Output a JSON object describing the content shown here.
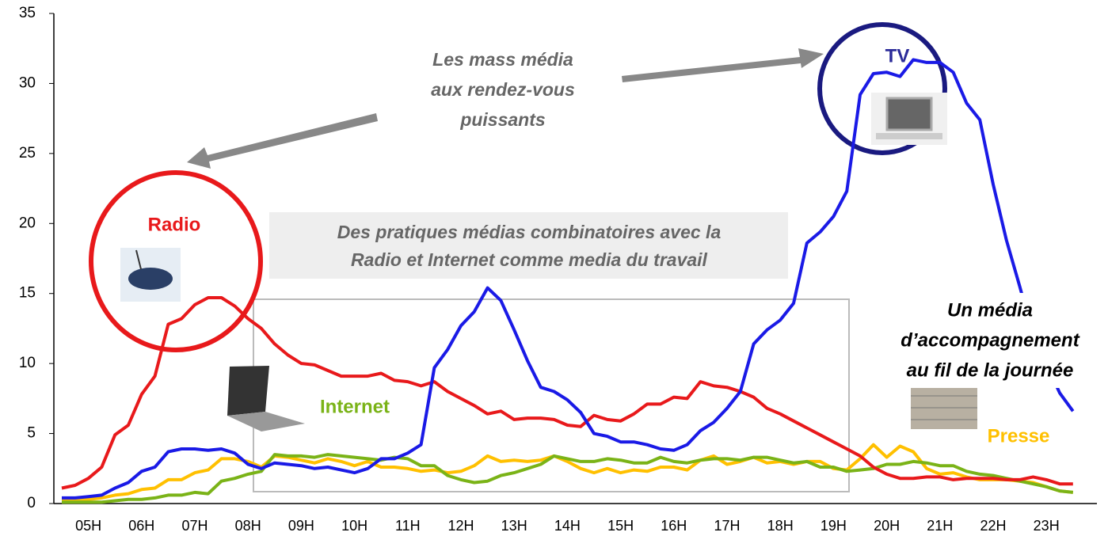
{
  "chart_data": {
    "type": "line",
    "categories": [
      null,
      null,
      "05H",
      null,
      null,
      null,
      "06H",
      null,
      null,
      null,
      "07H",
      null,
      null,
      null,
      "08H",
      null,
      null,
      null,
      "09H",
      null,
      null,
      null,
      "10H",
      null,
      null,
      null,
      "11H",
      null,
      null,
      null,
      "12H",
      null,
      null,
      null,
      "13H",
      null,
      null,
      null,
      "14H",
      null,
      null,
      null,
      "15H",
      null,
      null,
      null,
      "16H",
      null,
      null,
      null,
      "17H",
      null,
      null,
      null,
      "18H",
      null,
      null,
      null,
      "19H",
      null,
      null,
      null,
      "20H",
      null,
      null,
      null,
      "21H",
      null,
      null,
      null,
      "22H",
      null,
      null,
      null,
      "23H",
      null,
      null
    ],
    "series": [
      {
        "name": "Radio",
        "color": "#e8191b",
        "values": [
          1.1,
          1.3,
          1.8,
          2.6,
          4.9,
          5.6,
          7.8,
          9.1,
          12.8,
          13.2,
          14.2,
          14.7,
          14.7,
          14.1,
          13.2,
          12.5,
          11.4,
          10.6,
          10.0,
          9.9,
          9.5,
          9.1,
          9.1,
          9.1,
          9.3,
          8.8,
          8.7,
          8.4,
          8.7,
          8.0,
          7.5,
          7.0,
          6.4,
          6.6,
          6.0,
          6.1,
          6.1,
          6.0,
          5.6,
          5.5,
          6.3,
          6.0,
          5.9,
          6.4,
          7.1,
          7.1,
          7.6,
          7.5,
          8.7,
          8.4,
          8.3,
          8.0,
          7.6,
          6.8,
          6.4,
          5.9,
          5.4,
          4.9,
          4.4,
          3.9,
          3.4,
          2.6,
          2.1,
          1.8,
          1.8,
          1.9,
          1.9,
          1.7,
          1.8,
          1.8,
          1.8,
          1.7,
          1.7,
          1.9,
          1.7,
          1.4,
          1.4
        ]
      },
      {
        "name": "TV",
        "color": "#1a1ae6",
        "values": [
          0.4,
          0.4,
          0.5,
          0.6,
          1.1,
          1.5,
          2.3,
          2.6,
          3.7,
          3.9,
          3.9,
          3.8,
          3.9,
          3.6,
          2.8,
          2.5,
          2.9,
          2.8,
          2.7,
          2.5,
          2.6,
          2.4,
          2.2,
          2.5,
          3.2,
          3.2,
          3.6,
          4.2,
          9.7,
          11.0,
          12.7,
          13.7,
          15.4,
          14.5,
          12.4,
          10.2,
          8.3,
          8.0,
          7.4,
          6.5,
          5.0,
          4.8,
          4.4,
          4.4,
          4.2,
          3.9,
          3.8,
          4.2,
          5.2,
          5.8,
          6.8,
          8.0,
          11.4,
          12.4,
          13.1,
          14.3,
          18.6,
          19.4,
          20.5,
          22.3,
          29.2,
          30.7,
          30.8,
          30.5,
          31.7,
          31.5,
          31.5,
          30.8,
          28.6,
          27.4,
          22.8,
          18.8,
          15.5,
          12.0,
          10.0,
          7.9,
          6.6
        ]
      },
      {
        "name": "Internet",
        "color": "#7ab317",
        "values": [
          0.1,
          0.1,
          0.1,
          0.1,
          0.2,
          0.3,
          0.3,
          0.4,
          0.6,
          0.6,
          0.8,
          0.7,
          1.6,
          1.8,
          2.1,
          2.3,
          3.5,
          3.4,
          3.4,
          3.3,
          3.5,
          3.4,
          3.3,
          3.2,
          3.1,
          3.3,
          3.2,
          2.7,
          2.7,
          2.0,
          1.7,
          1.5,
          1.6,
          2.0,
          2.2,
          2.5,
          2.8,
          3.4,
          3.2,
          3.0,
          3.0,
          3.2,
          3.1,
          2.9,
          2.9,
          3.3,
          3.0,
          2.9,
          3.1,
          3.2,
          3.2,
          3.1,
          3.3,
          3.3,
          3.1,
          2.9,
          3.0,
          2.6,
          2.6,
          2.3,
          2.4,
          2.5,
          2.8,
          2.8,
          3.0,
          2.9,
          2.7,
          2.7,
          2.3,
          2.1,
          2.0,
          1.8,
          1.6,
          1.4,
          1.2,
          0.9,
          0.8
        ]
      },
      {
        "name": "Presse",
        "color": "#ffc000",
        "values": [
          0.2,
          0.2,
          0.3,
          0.4,
          0.6,
          0.7,
          1.0,
          1.1,
          1.7,
          1.7,
          2.2,
          2.4,
          3.2,
          3.2,
          3.0,
          2.6,
          3.4,
          3.3,
          3.1,
          2.9,
          3.2,
          3.0,
          2.7,
          3.0,
          2.6,
          2.6,
          2.5,
          2.3,
          2.4,
          2.2,
          2.3,
          2.7,
          3.4,
          3.0,
          3.1,
          3.0,
          3.1,
          3.4,
          3.0,
          2.5,
          2.2,
          2.5,
          2.2,
          2.4,
          2.3,
          2.6,
          2.6,
          2.4,
          3.1,
          3.4,
          2.8,
          3.0,
          3.3,
          2.9,
          3.0,
          2.8,
          3.0,
          3.0,
          2.5,
          2.4,
          3.2,
          4.2,
          3.3,
          4.1,
          3.7,
          2.5,
          2.1,
          2.2,
          1.9,
          1.7,
          1.7,
          1.7,
          1.6,
          1.5,
          1.2,
          0.9,
          0.8
        ]
      }
    ],
    "ylim": [
      0,
      35
    ],
    "yticks": [
      0,
      5,
      10,
      15,
      20,
      25,
      30,
      35
    ],
    "grid": false,
    "annotations": {
      "mass": [
        "Les mass média",
        "aux rendez-vous",
        "puissants"
      ],
      "combo": [
        "Des pratiques médias combinatoires avec la",
        "Radio et Internet comme media du travail"
      ],
      "accomp": [
        "Un média",
        "d’accompagnement",
        "au fil de la journée"
      ]
    }
  }
}
